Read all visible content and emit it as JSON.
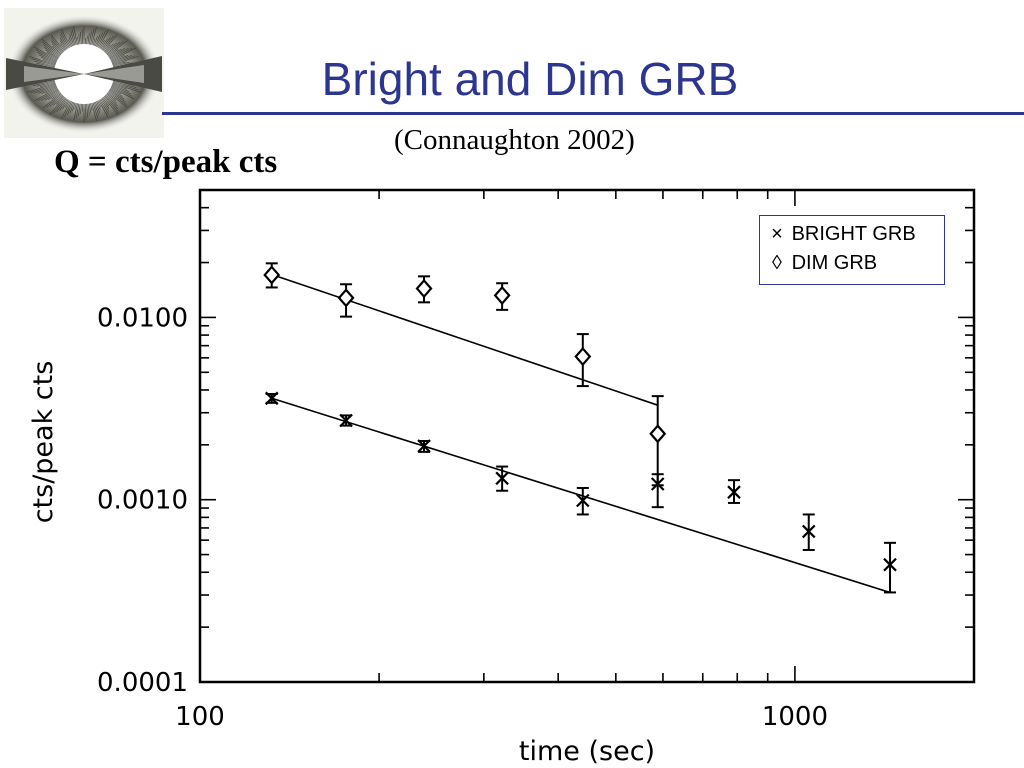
{
  "slide": {
    "title": "Bright and Dim GRB",
    "citation": "(Connaughton 2002)",
    "formula": "Q = cts/peak cts",
    "accent_color": "#2c3590",
    "logo_icon": "grb-jet-image"
  },
  "chart_data": {
    "type": "scatter",
    "x_scale": "log",
    "y_scale": "log",
    "xlim": [
      100,
      2000
    ],
    "ylim": [
      0.0001,
      0.05
    ],
    "xlabel": "time (sec)",
    "ylabel": "cts/peak cts",
    "x_ticks": [
      {
        "value": 100,
        "label": "100"
      },
      {
        "value": 1000,
        "label": "1000"
      }
    ],
    "y_ticks": [
      {
        "value": 0.0001,
        "label": "0.0001"
      },
      {
        "value": 0.001,
        "label": "0.0010"
      },
      {
        "value": 0.01,
        "label": "0.0100"
      }
    ],
    "legend_position": "top-right",
    "series": [
      {
        "name": "BRIGHT GRB",
        "marker": "x",
        "legend_symbol": "×",
        "points": [
          {
            "x": 132,
            "y": 0.0036,
            "lo": 0.0034,
            "hi": 0.0038
          },
          {
            "x": 176,
            "y": 0.00272,
            "lo": 0.00255,
            "hi": 0.0029
          },
          {
            "x": 238,
            "y": 0.00197,
            "lo": 0.00183,
            "hi": 0.0021
          },
          {
            "x": 322,
            "y": 0.00131,
            "lo": 0.00112,
            "hi": 0.00152
          },
          {
            "x": 440,
            "y": 0.00099,
            "lo": 0.00083,
            "hi": 0.00116
          },
          {
            "x": 588,
            "y": 0.00122,
            "lo": 0.00091,
            "hi": 0.00138
          },
          {
            "x": 790,
            "y": 0.0011,
            "lo": 0.00096,
            "hi": 0.00128
          },
          {
            "x": 1055,
            "y": 0.00067,
            "lo": 0.00053,
            "hi": 0.00083
          },
          {
            "x": 1445,
            "y": 0.00044,
            "lo": 0.00031,
            "hi": 0.00058
          }
        ],
        "fit": {
          "x": [
            132,
            1445
          ],
          "y": [
            0.0036,
            0.00031
          ]
        }
      },
      {
        "name": "DIM GRB",
        "marker": "diamond",
        "legend_symbol": "◊",
        "points": [
          {
            "x": 132,
            "y": 0.0171,
            "lo": 0.0146,
            "hi": 0.0198
          },
          {
            "x": 176,
            "y": 0.0128,
            "lo": 0.0101,
            "hi": 0.0152
          },
          {
            "x": 238,
            "y": 0.0144,
            "lo": 0.0121,
            "hi": 0.0168
          },
          {
            "x": 322,
            "y": 0.0132,
            "lo": 0.011,
            "hi": 0.0154
          },
          {
            "x": 440,
            "y": 0.0061,
            "lo": 0.0042,
            "hi": 0.0081
          },
          {
            "x": 588,
            "y": 0.0023,
            "lo": 0.0012,
            "hi": 0.0037
          }
        ],
        "fit": {
          "x": [
            132,
            588
          ],
          "y": [
            0.0172,
            0.0033
          ]
        }
      }
    ]
  }
}
